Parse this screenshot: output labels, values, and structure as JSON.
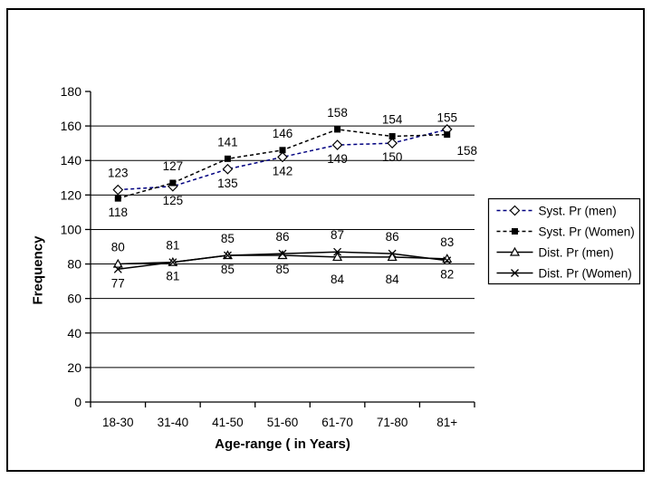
{
  "figure": {
    "background": "#ffffff",
    "frame_color": "#000000"
  },
  "chart_data": {
    "type": "line",
    "title": "",
    "xlabel": "Age-range ( in Years)",
    "ylabel": "Frequency",
    "categories": [
      "18-30",
      "31-40",
      "41-50",
      "51-60",
      "61-70",
      "71-80",
      "81+"
    ],
    "ylim": [
      0,
      180
    ],
    "ytick_step": 20,
    "ytick_labels": [
      0,
      20,
      40,
      60,
      80,
      100,
      120,
      140,
      160,
      180
    ],
    "grid": "horizontal",
    "grid_color": "#000000",
    "legend_position": "right",
    "series": [
      {
        "name": "Syst. Pr (men)",
        "values": [
          123,
          125,
          135,
          142,
          149,
          150,
          158
        ],
        "color": "#000080",
        "line_style": "dashed",
        "marker": "diamond-open",
        "label_positions": [
          "above",
          "below",
          "below",
          "below",
          "below",
          "below",
          "below-right"
        ]
      },
      {
        "name": "Syst. Pr (Women)",
        "values": [
          118,
          127,
          141,
          146,
          158,
          154,
          155
        ],
        "color": "#000000",
        "line_style": "dashed",
        "marker": "square-filled",
        "label_positions": [
          "below",
          "above",
          "above",
          "above",
          "above",
          "above",
          "above"
        ]
      },
      {
        "name": "Dist. Pr (men)",
        "values": [
          80,
          81,
          85,
          85,
          84,
          84,
          83
        ],
        "color": "#000000",
        "line_style": "solid",
        "marker": "triangle-open",
        "label_positions": [
          "above",
          "above",
          "above",
          "below",
          "below-far",
          "below-far",
          "above"
        ]
      },
      {
        "name": "Dist. Pr (Women)",
        "values": [
          77,
          81,
          85,
          86,
          87,
          86,
          82
        ],
        "color": "#000000",
        "line_style": "solid",
        "marker": "x",
        "label_positions": [
          "below",
          "below",
          "below",
          "above",
          "above",
          "above",
          "below"
        ]
      }
    ]
  }
}
